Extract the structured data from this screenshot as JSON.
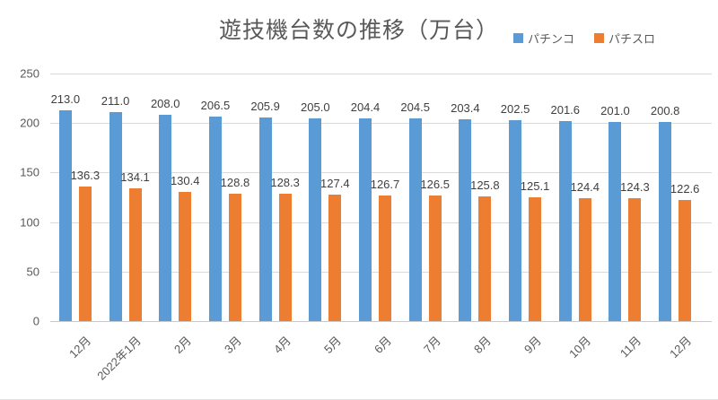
{
  "chart_data": {
    "type": "bar",
    "title": "遊技機台数の推移（万台）",
    "categories": [
      "12月",
      "2022年1月",
      "2月",
      "3月",
      "4月",
      "5月",
      "6月",
      "7月",
      "8月",
      "9月",
      "10月",
      "11月",
      "12月"
    ],
    "series": [
      {
        "name": "パチンコ",
        "color": "#5B9BD5",
        "values": [
          213.0,
          211.0,
          208.0,
          206.5,
          205.9,
          205.0,
          204.4,
          204.5,
          203.4,
          202.5,
          201.6,
          201.0,
          200.8
        ]
      },
      {
        "name": "パチスロ",
        "color": "#ED7D31",
        "values": [
          136.3,
          134.1,
          130.4,
          128.8,
          128.3,
          127.4,
          126.7,
          126.5,
          125.8,
          125.1,
          124.4,
          124.3,
          122.6
        ]
      }
    ],
    "xlabel": "",
    "ylabel": "",
    "ylim": [
      0,
      250
    ],
    "yticks": [
      0,
      50,
      100,
      150,
      200,
      250
    ],
    "grid": true,
    "value_labels": true,
    "value_label_decimals": 1,
    "legend_position": "top-right",
    "colors": {
      "background": "#ffffff",
      "gridline": "#d9d9d9",
      "axis_text": "#595959",
      "title_text": "#595959",
      "value_label_text": "#3f3f3f"
    }
  }
}
